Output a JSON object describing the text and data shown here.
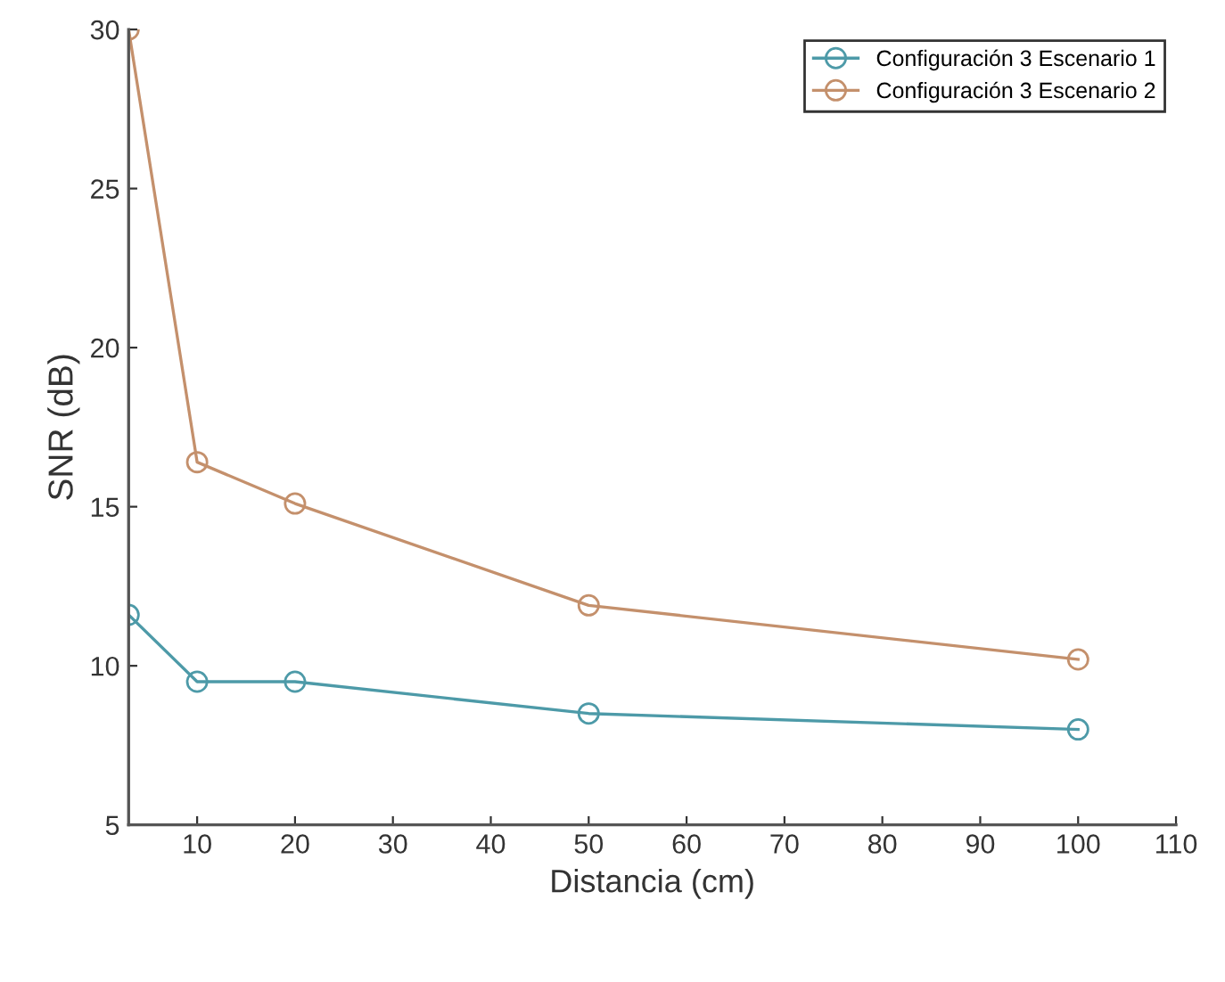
{
  "chart_data": {
    "type": "line",
    "xlabel": "Distancia (cm)",
    "ylabel": "SNR (dB)",
    "x": [
      3,
      10,
      20,
      50,
      100
    ],
    "series": [
      {
        "name": "Configuración 3 Escenario 1",
        "color": "#4d9aa8",
        "values": [
          11.6,
          9.5,
          9.5,
          8.5,
          8.0
        ]
      },
      {
        "name": "Configuración 3 Escenario 2",
        "color": "#c4906c",
        "values": [
          30,
          16.4,
          15.1,
          11.9,
          10.2
        ]
      }
    ],
    "xlim": [
      3,
      110
    ],
    "xticks": [
      10,
      20,
      30,
      40,
      50,
      60,
      70,
      80,
      90,
      100,
      110
    ],
    "ylim": [
      5,
      30
    ],
    "yticks": [
      5,
      10,
      15,
      20,
      25,
      30
    ],
    "grid": false,
    "legend": "top right",
    "marker": "circle",
    "line_style": "solid"
  }
}
